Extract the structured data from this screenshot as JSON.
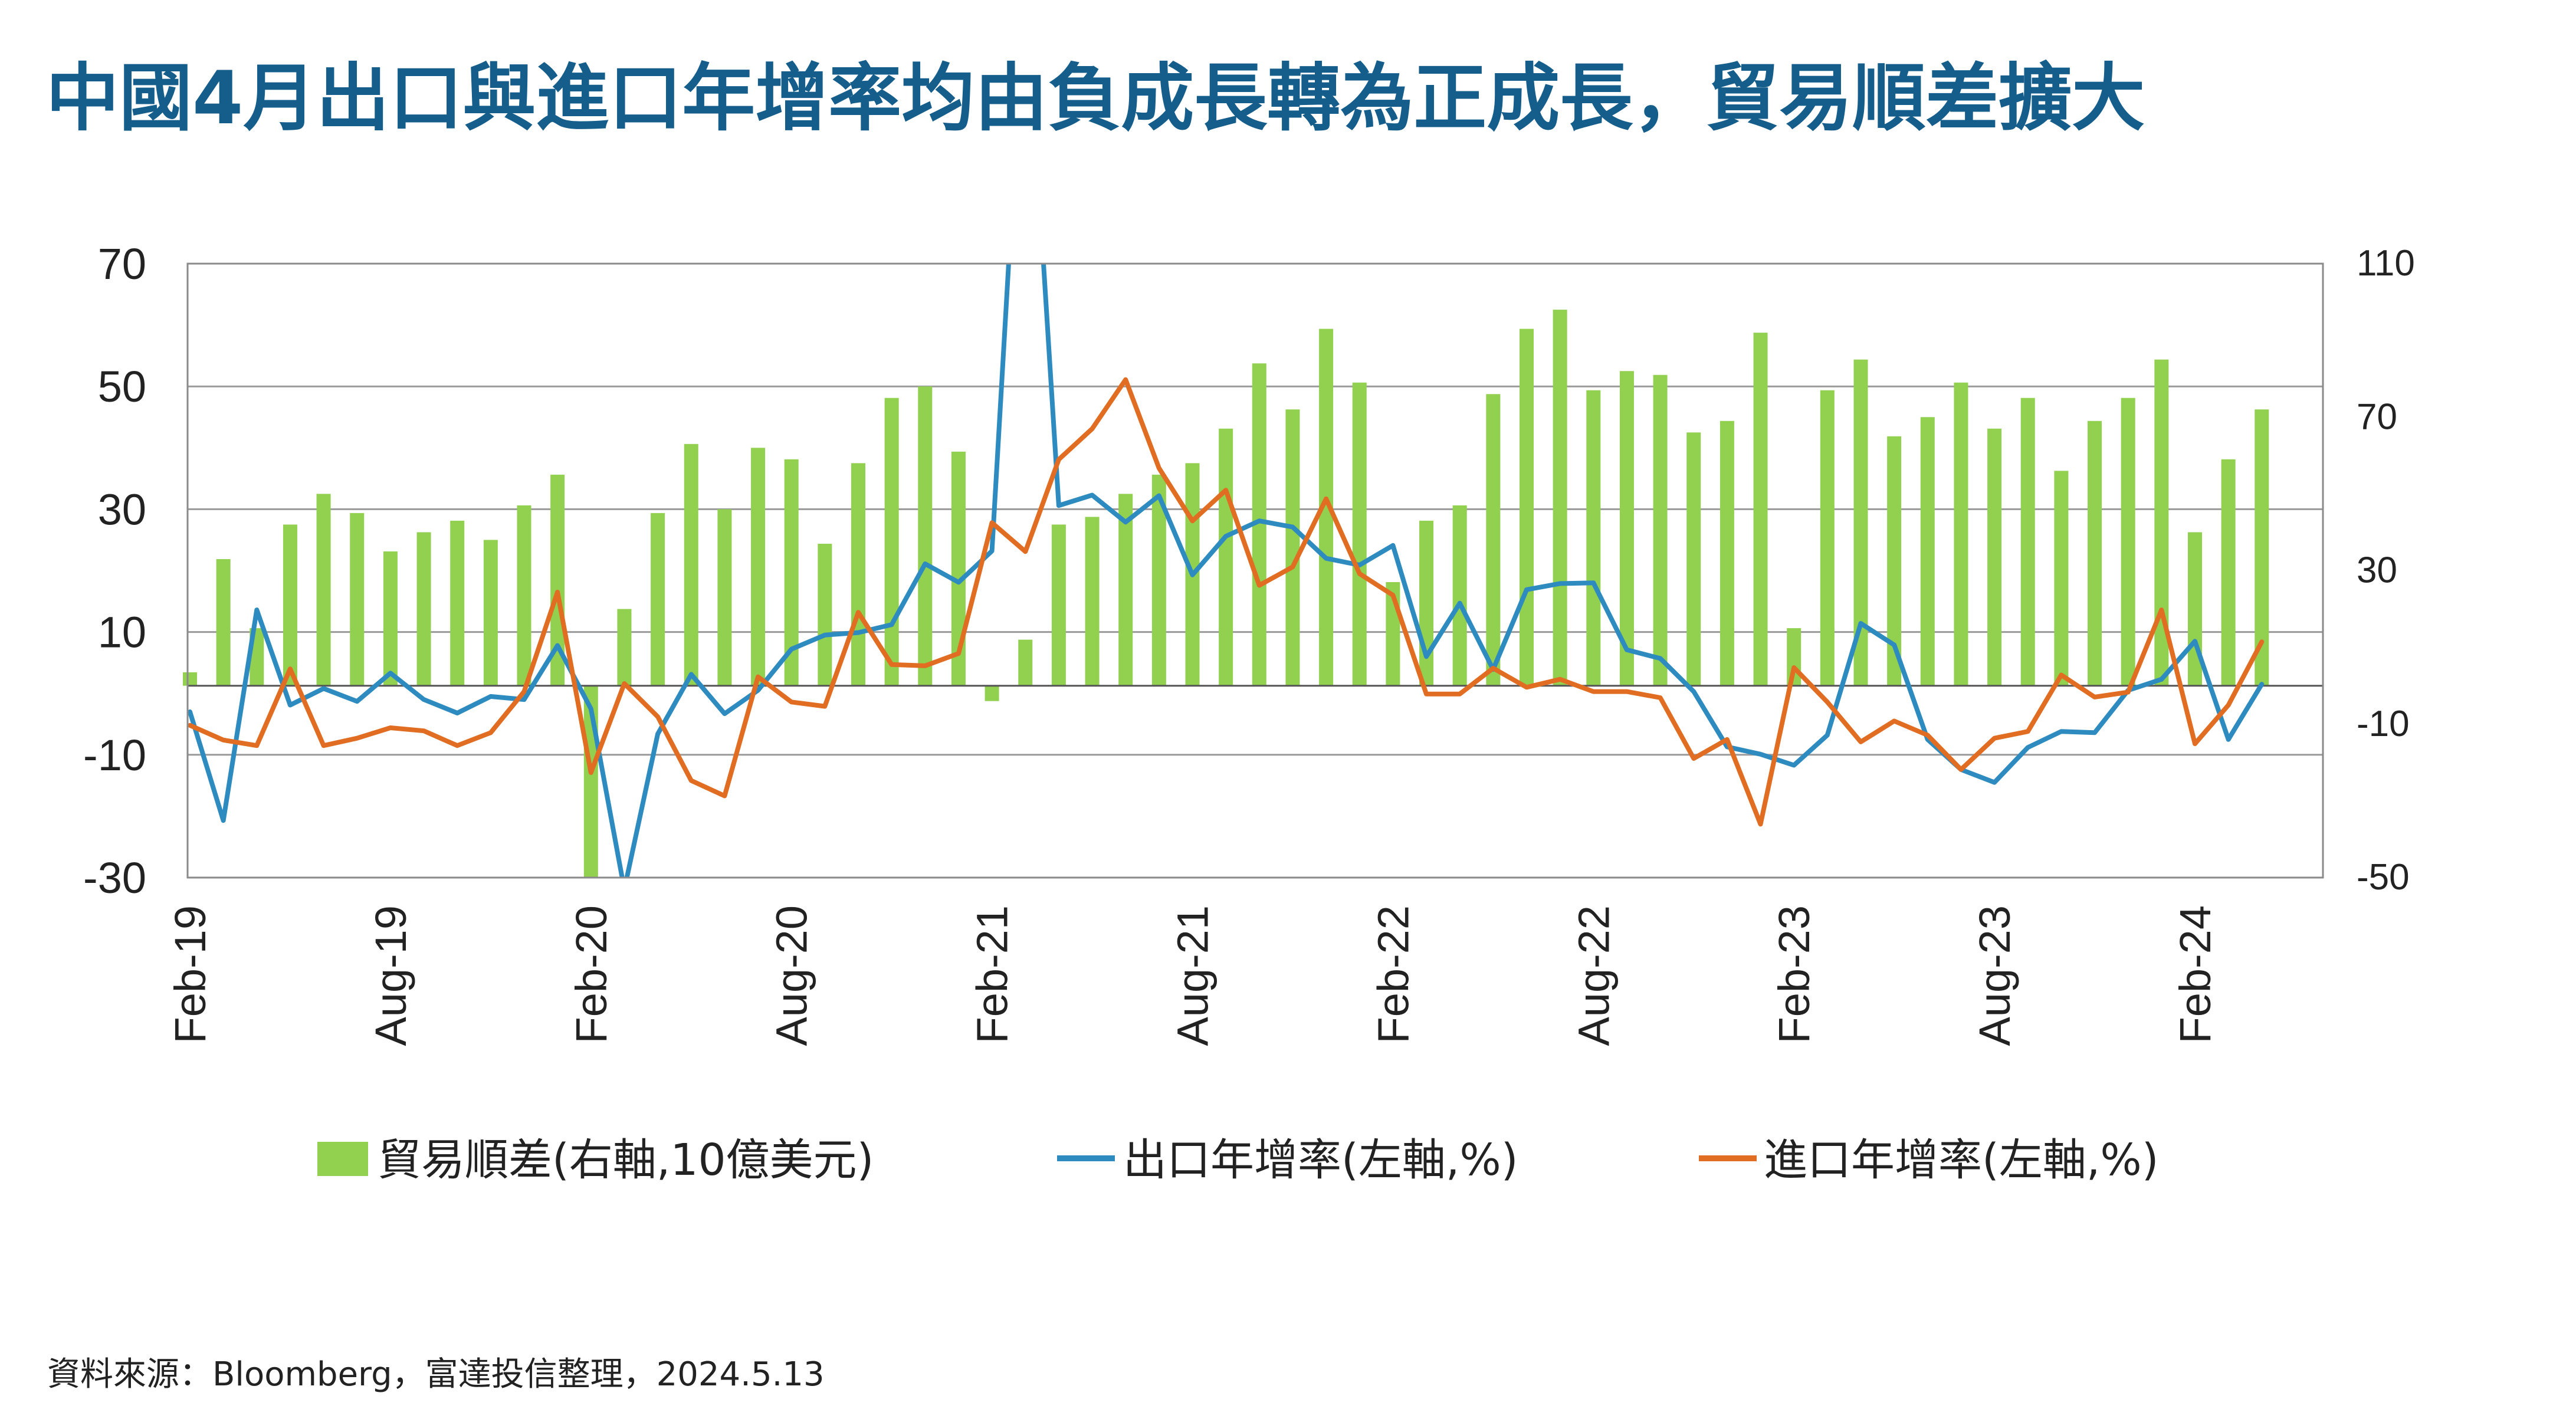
{
  "title": "中國4月出口與進口年增率均由負成長轉為正成長，貿易順差擴大",
  "source": "資料來源：Bloomberg，富達投信整理，2024.5.13",
  "chart_data": {
    "type": "bar+line",
    "x": [
      "Feb-19",
      "Mar-19",
      "Apr-19",
      "May-19",
      "Jun-19",
      "Jul-19",
      "Aug-19",
      "Sep-19",
      "Oct-19",
      "Nov-19",
      "Dec-19",
      "Jan-20",
      "Feb-20",
      "Mar-20",
      "Apr-20",
      "May-20",
      "Jun-20",
      "Jul-20",
      "Aug-20",
      "Sep-20",
      "Oct-20",
      "Nov-20",
      "Dec-20",
      "Jan-21",
      "Feb-21",
      "Mar-21",
      "Apr-21",
      "May-21",
      "Jun-21",
      "Jul-21",
      "Aug-21",
      "Sep-21",
      "Oct-21",
      "Nov-21",
      "Dec-21",
      "Jan-22",
      "Feb-22",
      "Mar-22",
      "Apr-22",
      "May-22",
      "Jun-22",
      "Jul-22",
      "Aug-22",
      "Sep-22",
      "Oct-22",
      "Nov-22",
      "Dec-22",
      "Jan-23",
      "Feb-23",
      "Mar-23",
      "Apr-23",
      "May-23",
      "Jun-23",
      "Jul-23",
      "Aug-23",
      "Sep-23",
      "Oct-23",
      "Nov-23",
      "Dec-23",
      "Jan-24",
      "Feb-24",
      "Mar-24",
      "Apr-24"
    ],
    "x_tick_labels": [
      "Feb-19",
      "Aug-19",
      "Feb-20",
      "Aug-20",
      "Feb-21",
      "Aug-21",
      "Feb-22",
      "Aug-22",
      "Feb-23",
      "Aug-23",
      "Feb-24"
    ],
    "y_left": {
      "min": -30,
      "max": 70,
      "ticks": [
        70,
        50,
        30,
        10,
        -10,
        -30
      ]
    },
    "y_right": {
      "min": -50,
      "max": 110,
      "ticks": [
        110,
        70,
        30,
        -10,
        -50
      ]
    },
    "series": [
      {
        "name": "貿易順差(右軸,10億美元)",
        "kind": "bar",
        "axis": "right",
        "color": "#92d050",
        "values": [
          3.5,
          33,
          15,
          42,
          50,
          45,
          35,
          40,
          43,
          38,
          47,
          55,
          -50,
          20,
          45,
          63,
          46,
          62,
          59,
          37,
          58,
          75,
          78,
          61,
          -4,
          12,
          42,
          44,
          50,
          55,
          58,
          67,
          84,
          72,
          93,
          79,
          27,
          43,
          47,
          76,
          93,
          98,
          77,
          82,
          81,
          66,
          69,
          92,
          15,
          77,
          85,
          65,
          70,
          79,
          67,
          75,
          56,
          69,
          75,
          85,
          40,
          59,
          72
        ]
      },
      {
        "name": "出口年增率(左軸,%)",
        "kind": "line",
        "axis": "left",
        "color": "#2e8bc0",
        "values": [
          -3.0,
          -20.7,
          13.6,
          -1.9,
          0.8,
          -1.3,
          3.3,
          -1.0,
          -3.2,
          -0.5,
          -1.0,
          7.8,
          -2.5,
          -34,
          -6.6,
          3.1,
          -3.3,
          0.5,
          7.2,
          9.5,
          9.9,
          11.2,
          21.1,
          18.1,
          23.2,
          154.9,
          30.6,
          32.3,
          27.9,
          32.2,
          19.3,
          25.6,
          28.1,
          27.1,
          22.0,
          20.9,
          24.1,
          6.0,
          14.7,
          3.9,
          16.9,
          17.9,
          18.0,
          7.1,
          5.7,
          0.3,
          -8.7,
          -9.9,
          -11.7,
          -6.8,
          11.4,
          7.9,
          -7.5,
          -12.4,
          -14.5,
          -8.8,
          -6.2,
          -6.4,
          0.5,
          2.3,
          8.5,
          -7.5,
          1.5
        ]
      },
      {
        "name": "進口年增率(左軸,%)",
        "kind": "line",
        "axis": "left",
        "color": "#e06d22",
        "values": [
          -5.2,
          -7.6,
          -8.5,
          4.0,
          -8.5,
          -7.3,
          -5.6,
          -6.1,
          -8.5,
          -6.4,
          0.3,
          16.5,
          -12.9,
          1.6,
          -3.8,
          -14.2,
          -16.7,
          2.7,
          -1.4,
          -2.1,
          13.2,
          4.7,
          4.5,
          6.5,
          27.8,
          23.1,
          38.1,
          43.1,
          51.1,
          36.7,
          28.1,
          33.1,
          17.6,
          20.6,
          31.7,
          19.5,
          16.0,
          -0.1,
          -0.1,
          4.1,
          1.0,
          2.3,
          0.3,
          0.3,
          -0.7,
          -10.6,
          -7.5,
          -21.3,
          4.2,
          -1.4,
          -7.9,
          -4.5,
          -6.8,
          -12.4,
          -7.3,
          -6.2,
          3.0,
          -0.6,
          0.2,
          13.6,
          -8.2,
          -1.9,
          8.4
        ]
      }
    ],
    "legend_position": "bottom",
    "grid": true
  },
  "colors": {
    "title": "#155e8c",
    "bar": "#92d050",
    "export": "#2e8bc0",
    "import": "#e06d22"
  }
}
